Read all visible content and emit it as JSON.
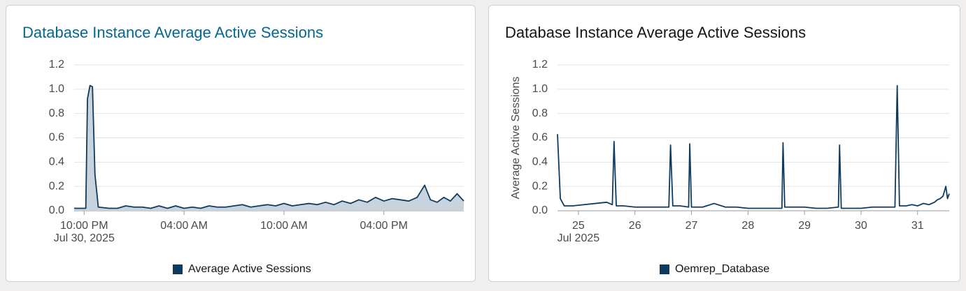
{
  "chart_data": [
    {
      "type": "area",
      "title": "Database Instance Average Active Sessions",
      "title_color": "#04688c",
      "x": [
        -0.6,
        -0.2,
        0.1,
        0.2,
        0.35,
        0.5,
        0.65,
        0.85,
        1.5,
        2,
        2.5,
        3,
        3.5,
        4,
        4.5,
        5,
        5.5,
        6,
        6.5,
        7,
        7.5,
        8,
        8.5,
        9,
        9.5,
        10,
        10.5,
        11,
        11.5,
        12,
        12.5,
        13,
        13.5,
        14,
        14.5,
        15,
        15.5,
        16,
        16.5,
        17,
        17.5,
        18,
        18.5,
        19,
        19.5,
        20,
        20.45,
        20.8,
        21.2,
        21.6,
        22,
        22.4,
        22.8
      ],
      "series": [
        {
          "name": "Average Active Sessions",
          "color": "#0f3b5f",
          "fill": "#c9d3de",
          "values": [
            0.02,
            0.02,
            0.02,
            0.92,
            1.03,
            1.02,
            0.3,
            0.03,
            0.02,
            0.02,
            0.04,
            0.03,
            0.03,
            0.02,
            0.04,
            0.02,
            0.04,
            0.02,
            0.03,
            0.02,
            0.04,
            0.03,
            0.03,
            0.04,
            0.05,
            0.03,
            0.04,
            0.05,
            0.04,
            0.06,
            0.04,
            0.05,
            0.06,
            0.05,
            0.07,
            0.05,
            0.08,
            0.06,
            0.09,
            0.07,
            0.11,
            0.08,
            0.1,
            0.09,
            0.08,
            0.11,
            0.21,
            0.09,
            0.07,
            0.11,
            0.08,
            0.14,
            0.08
          ]
        }
      ],
      "xlim": [
        -0.6,
        22.8
      ],
      "xticks": [
        {
          "value": 0,
          "label": "10:00 PM"
        },
        {
          "value": 6,
          "label": "04:00 AM"
        },
        {
          "value": 12,
          "label": "10:00 AM"
        },
        {
          "value": 18,
          "label": "04:00 PM"
        }
      ],
      "x_sublabel": "Jul 30, 2025",
      "ylim": [
        0,
        1.2
      ],
      "yticks": [
        {
          "value": 0,
          "label": "0.0"
        },
        0.2,
        0.4,
        0.6,
        0.8,
        {
          "value": 1,
          "label": "1.0"
        },
        1.2
      ],
      "grid": true
    },
    {
      "type": "line",
      "title": "Database Instance Average Active Sessions",
      "title_color": "#161513",
      "y_label": "Average Active Sessions",
      "x": [
        24.63,
        24.68,
        24.75,
        24.9,
        25.1,
        25.3,
        25.5,
        25.6,
        25.63,
        25.67,
        25.8,
        26,
        26.2,
        26.4,
        26.6,
        26.63,
        26.67,
        26.8,
        26.95,
        26.97,
        27,
        27.2,
        27.4,
        27.6,
        27.8,
        28,
        28.2,
        28.4,
        28.6,
        28.62,
        28.65,
        28.8,
        29,
        29.2,
        29.4,
        29.6,
        29.62,
        29.65,
        29.8,
        30,
        30.2,
        30.4,
        30.6,
        30.64,
        30.68,
        30.8,
        30.9,
        31,
        31.1,
        31.2,
        31.3,
        31.35,
        31.4,
        31.45,
        31.5,
        31.53,
        31.56
      ],
      "series": [
        {
          "name": "Oemrep_Database",
          "color": "#0f3b5f",
          "values": [
            0.63,
            0.1,
            0.04,
            0.04,
            0.05,
            0.06,
            0.07,
            0.05,
            0.57,
            0.04,
            0.04,
            0.03,
            0.03,
            0.03,
            0.03,
            0.54,
            0.04,
            0.04,
            0.03,
            0.55,
            0.03,
            0.03,
            0.06,
            0.03,
            0.03,
            0.02,
            0.02,
            0.02,
            0.02,
            0.56,
            0.03,
            0.03,
            0.03,
            0.02,
            0.02,
            0.03,
            0.54,
            0.02,
            0.02,
            0.02,
            0.03,
            0.03,
            0.03,
            1.03,
            0.04,
            0.04,
            0.05,
            0.04,
            0.06,
            0.05,
            0.07,
            0.09,
            0.1,
            0.12,
            0.2,
            0.1,
            0.14
          ]
        }
      ],
      "xlim": [
        24.63,
        31.56
      ],
      "xticks": [
        25,
        26,
        27,
        28,
        29,
        30,
        31
      ],
      "x_sublabel": "Jul 2025",
      "ylim": [
        0,
        1.2
      ],
      "yticks": [
        {
          "value": 0,
          "label": "0.0"
        },
        0.2,
        0.4,
        0.6,
        0.8,
        {
          "value": 1,
          "label": "1.0"
        },
        1.2
      ],
      "grid": true
    }
  ]
}
